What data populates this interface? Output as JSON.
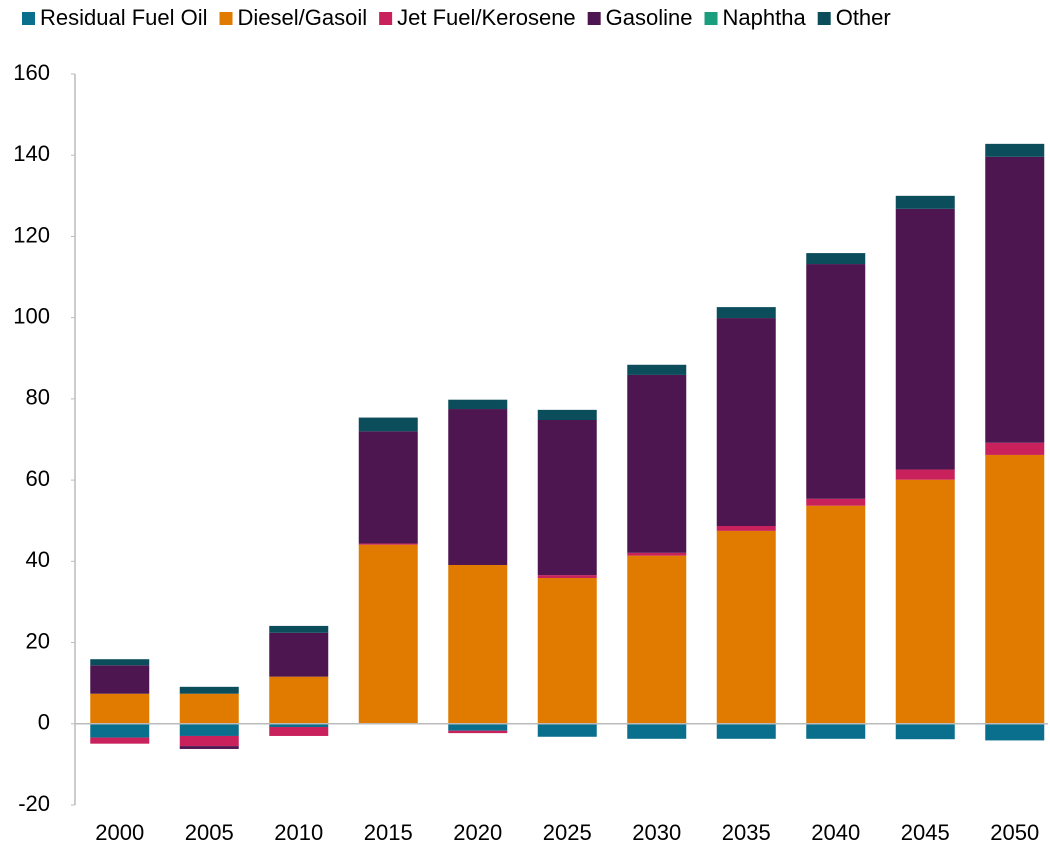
{
  "chart_data": {
    "type": "stacked_bar",
    "categories": [
      "2000",
      "2005",
      "2010",
      "2015",
      "2020",
      "2025",
      "2030",
      "2035",
      "2040",
      "2045",
      "2050"
    ],
    "series": [
      {
        "name": "Residual Fuel Oil",
        "color": "#0a6f8c",
        "values": [
          -3.4,
          -3,
          -0.8,
          0,
          -1.7,
          -3.2,
          -3.7,
          -3.7,
          -3.7,
          -3.8,
          -4.1
        ]
      },
      {
        "name": "Diesel/Gasoil",
        "color": "#e07b00",
        "values": [
          7.4,
          7.4,
          11.6,
          44.1,
          39.1,
          35.9,
          41.4,
          47.5,
          53.7,
          60.1,
          66.2
        ]
      },
      {
        "name": "Jet Fuel/Kerosene",
        "color": "#c8215c",
        "values": [
          -1.5,
          -2.5,
          -2.2,
          0.3,
          -0.6,
          0.7,
          0.7,
          1.2,
          1.7,
          2.5,
          3
        ]
      },
      {
        "name": "Gasoline",
        "color": "#4e1650",
        "values": [
          7,
          -0.7,
          10.8,
          27.6,
          38.4,
          38.2,
          43.8,
          51.2,
          57.8,
          64.2,
          70.4
        ]
      },
      {
        "name": "Naphtha",
        "color": "#1a9e7e",
        "values": [
          0,
          0,
          0,
          0,
          0,
          0,
          0,
          0,
          0,
          0,
          0
        ]
      },
      {
        "name": "Other",
        "color": "#0c4d5c",
        "values": [
          1.5,
          1.7,
          1.7,
          3.4,
          2.3,
          2.5,
          2.5,
          2.7,
          2.7,
          3.2,
          3.2
        ]
      }
    ],
    "ylim": [
      -20,
      160
    ],
    "yticks": [
      -20,
      0,
      20,
      40,
      60,
      80,
      100,
      120,
      140,
      160
    ],
    "legend": "top"
  }
}
